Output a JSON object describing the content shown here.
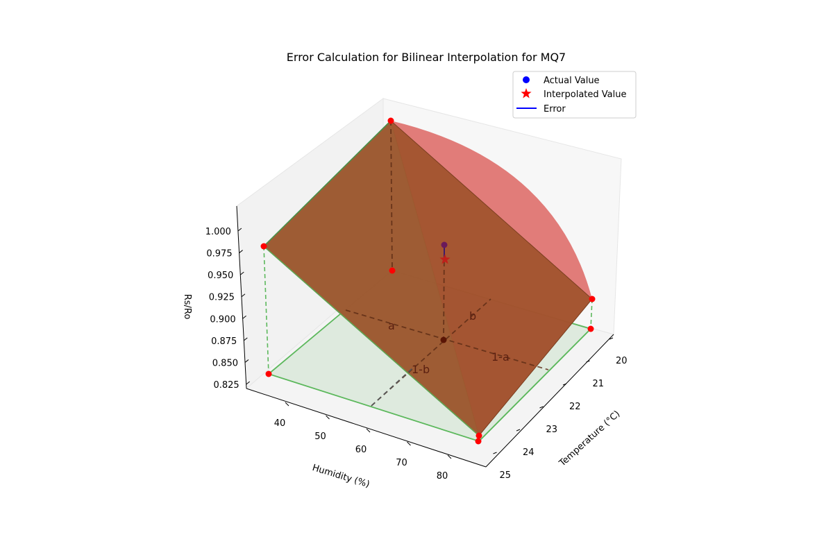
{
  "chart_data": {
    "type": "surface3d",
    "title": "Error Calculation for Bilinear Interpolation for MQ7",
    "xlabel": "Humidity (%)",
    "ylabel": "Temperature (°C)",
    "zlabel": "Rs/Ro",
    "xlim": [
      33,
      87
    ],
    "ylim": [
      19.5,
      25.3
    ],
    "zlim": [
      0.82,
      1.02
    ],
    "x_ticks": [
      "40",
      "50",
      "60",
      "70",
      "80"
    ],
    "y_ticks": [
      "20",
      "21",
      "22",
      "23",
      "24",
      "25"
    ],
    "z_ticks": [
      "0.825",
      "0.850",
      "0.875",
      "0.900",
      "0.925",
      "0.950",
      "0.975",
      "1.000"
    ],
    "grid": false,
    "legend_position": "top-right",
    "legend": [
      {
        "label": "Actual Value",
        "marker": "circle",
        "color": "#0000ff"
      },
      {
        "label": "Interpolated Value",
        "marker": "star",
        "color": "#ff0000"
      },
      {
        "label": "Error",
        "marker": "line",
        "color": "#0000ff"
      }
    ],
    "corner_points": [
      {
        "x": 35,
        "y": 20,
        "z": 1.012
      },
      {
        "x": 35,
        "y": 25,
        "z": 0.976
      },
      {
        "x": 85,
        "y": 20,
        "z": 0.866
      },
      {
        "x": 85,
        "y": 25,
        "z": 0.835
      }
    ],
    "actual_value": {
      "x": 60,
      "y": 22.5,
      "z": 0.94
    },
    "interpolated_value": {
      "x": 60,
      "y": 22.5,
      "z": 0.925
    },
    "interpolation_labels": [
      "a",
      "b",
      "1-a",
      "1-b"
    ],
    "colors": {
      "surface": "#a0522d",
      "actual_surface": "#d9534f",
      "plane": "#4caf50",
      "point": "#ff0000"
    }
  }
}
